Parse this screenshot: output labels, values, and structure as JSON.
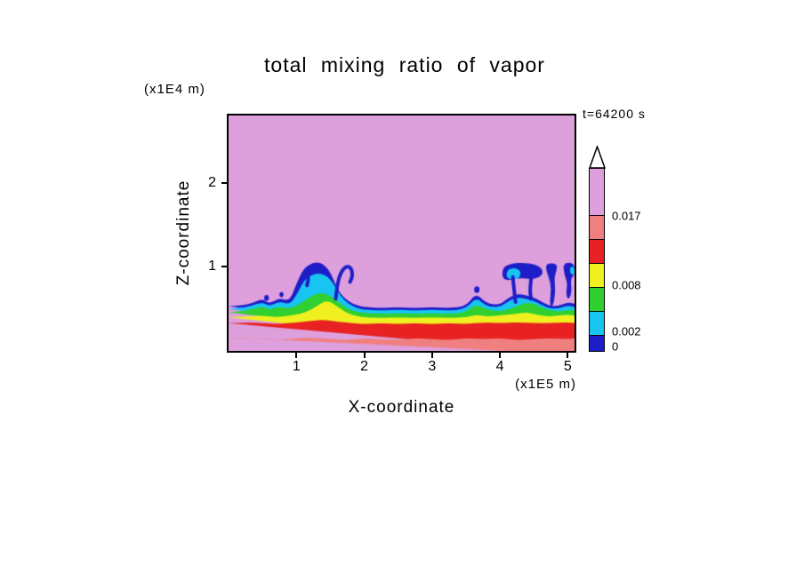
{
  "chart_data": {
    "type": "contour",
    "title": "total mixing ratio of vapor",
    "time_label": "t=64200 s",
    "xlabel": "X-coordinate",
    "x_unit_label": "(x1E5 m)",
    "ylabel": "Z-coordinate",
    "y_unit_label": "(x1E4 m)",
    "x_range": [
      0,
      5.1
    ],
    "y_range": [
      0,
      2.8
    ],
    "x_ticks": [
      "1",
      "2",
      "3",
      "4",
      "5"
    ],
    "x_tick_values": [
      1,
      2,
      3,
      4,
      5
    ],
    "y_ticks": [
      "1",
      "2"
    ],
    "y_tick_values": [
      1,
      2
    ],
    "levels": [
      0,
      0.002,
      0.005,
      0.008,
      0.011,
      0.014,
      0.017
    ],
    "palette": {
      "blue": "#1e1ec8",
      "cyan": "#18c5f0",
      "green": "#30d030",
      "yellow": "#f0f020",
      "red": "#e82222",
      "salmon": "#f08080",
      "plum": "#dda0dd"
    },
    "colorbar": {
      "segments_bottom_to_top": [
        {
          "color": "blue",
          "range": [
            0,
            0.002
          ]
        },
        {
          "color": "cyan",
          "range": [
            0.002,
            0.005
          ]
        },
        {
          "color": "green",
          "range": [
            0.005,
            0.008
          ]
        },
        {
          "color": "yellow",
          "range": [
            0.008,
            0.011
          ]
        },
        {
          "color": "red",
          "range": [
            0.011,
            0.014
          ]
        },
        {
          "color": "salmon",
          "range": [
            0.014,
            0.017
          ]
        },
        {
          "color": "plum",
          "range": [
            0.017,
            null
          ]
        }
      ],
      "labels": [
        {
          "text": "0.017",
          "level": 0.017
        },
        {
          "text": "0.008",
          "level": 0.008
        },
        {
          "text": "0.002",
          "level": 0.002
        },
        {
          "text": "0",
          "level": 0
        }
      ],
      "overflow_arrow": true
    },
    "field": {
      "background_color": "plum",
      "band_colors_bottom_to_top": [
        "salmon",
        "red",
        "yellow",
        "green",
        "cyan",
        "blue"
      ],
      "band_top_curves": [
        [
          [
            0,
            0.16
          ],
          [
            0.25,
            0.14
          ],
          [
            0.5,
            0.15
          ],
          [
            0.75,
            0.13
          ],
          [
            1.0,
            0.15
          ],
          [
            1.25,
            0.16
          ],
          [
            1.5,
            0.14
          ],
          [
            1.75,
            0.13
          ],
          [
            2.0,
            0.15
          ],
          [
            2.25,
            0.14
          ],
          [
            2.5,
            0.13
          ],
          [
            2.75,
            0.15
          ],
          [
            3.0,
            0.14
          ],
          [
            3.25,
            0.13
          ],
          [
            3.5,
            0.15
          ],
          [
            3.75,
            0.14
          ],
          [
            4.0,
            0.15
          ],
          [
            4.25,
            0.13
          ],
          [
            4.5,
            0.14
          ],
          [
            4.75,
            0.15
          ],
          [
            5.0,
            0.14
          ],
          [
            5.1,
            0.15
          ]
        ],
        [
          [
            0,
            0.33
          ],
          [
            0.25,
            0.34
          ],
          [
            0.5,
            0.33
          ],
          [
            0.75,
            0.32
          ],
          [
            1.0,
            0.34
          ],
          [
            1.25,
            0.36
          ],
          [
            1.4,
            0.37
          ],
          [
            1.6,
            0.35
          ],
          [
            1.8,
            0.33
          ],
          [
            2.0,
            0.32
          ],
          [
            2.25,
            0.33
          ],
          [
            2.5,
            0.32
          ],
          [
            2.75,
            0.33
          ],
          [
            3.0,
            0.32
          ],
          [
            3.25,
            0.33
          ],
          [
            3.5,
            0.32
          ],
          [
            3.75,
            0.34
          ],
          [
            4.0,
            0.33
          ],
          [
            4.25,
            0.34
          ],
          [
            4.5,
            0.33
          ],
          [
            4.75,
            0.33
          ],
          [
            5.0,
            0.34
          ],
          [
            5.1,
            0.33
          ]
        ],
        [
          [
            0,
            0.4
          ],
          [
            0.25,
            0.41
          ],
          [
            0.5,
            0.42
          ],
          [
            0.7,
            0.4
          ],
          [
            0.9,
            0.42
          ],
          [
            1.05,
            0.44
          ],
          [
            1.2,
            0.48
          ],
          [
            1.35,
            0.56
          ],
          [
            1.45,
            0.6
          ],
          [
            1.55,
            0.56
          ],
          [
            1.7,
            0.47
          ],
          [
            1.85,
            0.42
          ],
          [
            2.0,
            0.4
          ],
          [
            2.25,
            0.39
          ],
          [
            2.5,
            0.4
          ],
          [
            2.75,
            0.39
          ],
          [
            3.0,
            0.4
          ],
          [
            3.25,
            0.39
          ],
          [
            3.5,
            0.4
          ],
          [
            3.65,
            0.43
          ],
          [
            3.8,
            0.41
          ],
          [
            4.0,
            0.42
          ],
          [
            4.2,
            0.44
          ],
          [
            4.4,
            0.46
          ],
          [
            4.55,
            0.43
          ],
          [
            4.7,
            0.41
          ],
          [
            4.85,
            0.42
          ],
          [
            5.0,
            0.43
          ],
          [
            5.1,
            0.42
          ]
        ],
        [
          [
            0,
            0.46
          ],
          [
            0.2,
            0.47
          ],
          [
            0.35,
            0.5
          ],
          [
            0.5,
            0.53
          ],
          [
            0.6,
            0.49
          ],
          [
            0.75,
            0.53
          ],
          [
            0.9,
            0.5
          ],
          [
            1.05,
            0.56
          ],
          [
            1.2,
            0.64
          ],
          [
            1.35,
            0.7
          ],
          [
            1.5,
            0.66
          ],
          [
            1.65,
            0.56
          ],
          [
            1.8,
            0.48
          ],
          [
            2.0,
            0.45
          ],
          [
            2.25,
            0.44
          ],
          [
            2.5,
            0.45
          ],
          [
            2.75,
            0.44
          ],
          [
            3.0,
            0.45
          ],
          [
            3.25,
            0.44
          ],
          [
            3.5,
            0.46
          ],
          [
            3.65,
            0.56
          ],
          [
            3.8,
            0.49
          ],
          [
            4.0,
            0.47
          ],
          [
            4.15,
            0.5
          ],
          [
            4.3,
            0.55
          ],
          [
            4.45,
            0.58
          ],
          [
            4.6,
            0.52
          ],
          [
            4.75,
            0.48
          ],
          [
            4.9,
            0.47
          ],
          [
            5.05,
            0.49
          ],
          [
            5.1,
            0.48
          ]
        ],
        [
          [
            0,
            0.5
          ],
          [
            0.2,
            0.51
          ],
          [
            0.35,
            0.54
          ],
          [
            0.5,
            0.58
          ],
          [
            0.6,
            0.53
          ],
          [
            0.75,
            0.59
          ],
          [
            0.9,
            0.55
          ],
          [
            1.0,
            0.66
          ],
          [
            1.1,
            0.82
          ],
          [
            1.2,
            0.9
          ],
          [
            1.35,
            0.93
          ],
          [
            1.5,
            0.86
          ],
          [
            1.6,
            0.72
          ],
          [
            1.7,
            0.6
          ],
          [
            1.85,
            0.52
          ],
          [
            2.0,
            0.49
          ],
          [
            2.25,
            0.48
          ],
          [
            2.5,
            0.49
          ],
          [
            2.75,
            0.48
          ],
          [
            3.0,
            0.49
          ],
          [
            3.25,
            0.48
          ],
          [
            3.5,
            0.5
          ],
          [
            3.65,
            0.64
          ],
          [
            3.8,
            0.53
          ],
          [
            4.0,
            0.52
          ],
          [
            4.1,
            0.58
          ],
          [
            4.25,
            0.64
          ],
          [
            4.4,
            0.62
          ],
          [
            4.55,
            0.58
          ],
          [
            4.7,
            0.51
          ],
          [
            4.85,
            0.5
          ],
          [
            5.0,
            0.54
          ],
          [
            5.1,
            0.52
          ]
        ],
        [
          [
            0,
            0.53
          ],
          [
            0.2,
            0.54
          ],
          [
            0.35,
            0.57
          ],
          [
            0.5,
            0.62
          ],
          [
            0.6,
            0.56
          ],
          [
            0.75,
            0.63
          ],
          [
            0.9,
            0.59
          ],
          [
            1.0,
            0.8
          ],
          [
            1.1,
            0.97
          ],
          [
            1.2,
            1.03
          ],
          [
            1.3,
            1.06
          ],
          [
            1.4,
            1.03
          ],
          [
            1.5,
            0.94
          ],
          [
            1.6,
            0.74
          ],
          [
            1.7,
            0.63
          ],
          [
            1.85,
            0.55
          ],
          [
            2.0,
            0.52
          ],
          [
            2.25,
            0.51
          ],
          [
            2.5,
            0.52
          ],
          [
            2.75,
            0.51
          ],
          [
            3.0,
            0.52
          ],
          [
            3.25,
            0.51
          ],
          [
            3.5,
            0.53
          ],
          [
            3.65,
            0.69
          ],
          [
            3.8,
            0.56
          ],
          [
            4.0,
            0.55
          ],
          [
            4.1,
            0.62
          ],
          [
            4.25,
            0.68
          ],
          [
            4.4,
            0.66
          ],
          [
            4.55,
            0.62
          ],
          [
            4.7,
            0.54
          ],
          [
            4.85,
            0.53
          ],
          [
            5.0,
            0.58
          ],
          [
            5.1,
            0.56
          ]
        ]
      ],
      "features": [
        {
          "name": "left-plume-inner-finger",
          "type": "stroke",
          "color": "blue",
          "width": 4,
          "points": [
            [
              1.17,
              0.97
            ],
            [
              1.18,
              0.86
            ],
            [
              1.155,
              0.78
            ]
          ]
        },
        {
          "name": "left-plume-hook",
          "type": "stroke",
          "color": "blue",
          "width": 4,
          "points": [
            [
              1.58,
              0.62
            ],
            [
              1.6,
              0.78
            ],
            [
              1.65,
              0.93
            ],
            [
              1.73,
              1.01
            ],
            [
              1.81,
              0.99
            ],
            [
              1.83,
              0.89
            ],
            [
              1.79,
              0.82
            ]
          ]
        },
        {
          "name": "right-canopy",
          "type": "polygon",
          "color": "blue",
          "points": [
            [
              4.03,
              0.9
            ],
            [
              4.05,
              1.0
            ],
            [
              4.18,
              1.04
            ],
            [
              4.35,
              1.05
            ],
            [
              4.5,
              1.03
            ],
            [
              4.6,
              1.0
            ],
            [
              4.64,
              0.93
            ],
            [
              4.58,
              0.87
            ],
            [
              4.45,
              0.85
            ],
            [
              4.3,
              0.87
            ],
            [
              4.15,
              0.84
            ],
            [
              4.06,
              0.85
            ]
          ]
        },
        {
          "name": "right-canopy-cyan-core",
          "type": "polygon",
          "color": "cyan",
          "points": [
            [
              4.09,
              0.9
            ],
            [
              4.12,
              0.97
            ],
            [
              4.22,
              0.99
            ],
            [
              4.31,
              0.95
            ],
            [
              4.29,
              0.87
            ],
            [
              4.2,
              0.845
            ],
            [
              4.12,
              0.86
            ]
          ]
        },
        {
          "name": "canopy-finger-left",
          "type": "stroke",
          "color": "blue",
          "width": 4,
          "points": [
            [
              4.19,
              0.88
            ],
            [
              4.21,
              0.72
            ],
            [
              4.23,
              0.58
            ]
          ]
        },
        {
          "name": "canopy-finger-right",
          "type": "stroke",
          "color": "blue",
          "width": 4,
          "points": [
            [
              4.46,
              0.86
            ],
            [
              4.44,
              0.72
            ],
            [
              4.46,
              0.62
            ]
          ]
        },
        {
          "name": "right-column-1",
          "type": "polygon",
          "color": "blue",
          "points": [
            [
              4.68,
              1.04
            ],
            [
              4.84,
              1.04
            ],
            [
              4.84,
              0.96
            ],
            [
              4.8,
              0.88
            ],
            [
              4.82,
              0.7
            ],
            [
              4.78,
              0.52
            ],
            [
              4.73,
              0.56
            ],
            [
              4.76,
              0.74
            ],
            [
              4.72,
              0.88
            ],
            [
              4.68,
              0.96
            ]
          ]
        },
        {
          "name": "right-column-2",
          "type": "polygon",
          "color": "blue",
          "points": [
            [
              4.93,
              1.05
            ],
            [
              5.1,
              1.05
            ],
            [
              5.1,
              0.9
            ],
            [
              5.04,
              0.86
            ],
            [
              5.06,
              0.7
            ],
            [
              5.01,
              0.6
            ],
            [
              4.97,
              0.68
            ],
            [
              5.0,
              0.8
            ],
            [
              4.95,
              0.9
            ]
          ]
        },
        {
          "name": "right-edge-cyan",
          "type": "polygon",
          "color": "cyan",
          "points": [
            [
              5.03,
              1.0
            ],
            [
              5.1,
              1.0
            ],
            [
              5.1,
              0.9
            ],
            [
              5.04,
              0.91
            ]
          ]
        },
        {
          "name": "left-blob-1",
          "type": "circle",
          "color": "blue",
          "cx": 0.56,
          "cy": 0.63,
          "r": 0.035
        },
        {
          "name": "left-blob-2",
          "type": "circle",
          "color": "blue",
          "cx": 0.78,
          "cy": 0.67,
          "r": 0.03
        },
        {
          "name": "mid-right-blob",
          "type": "circle",
          "color": "blue",
          "cx": 3.66,
          "cy": 0.73,
          "r": 0.04
        }
      ]
    }
  }
}
